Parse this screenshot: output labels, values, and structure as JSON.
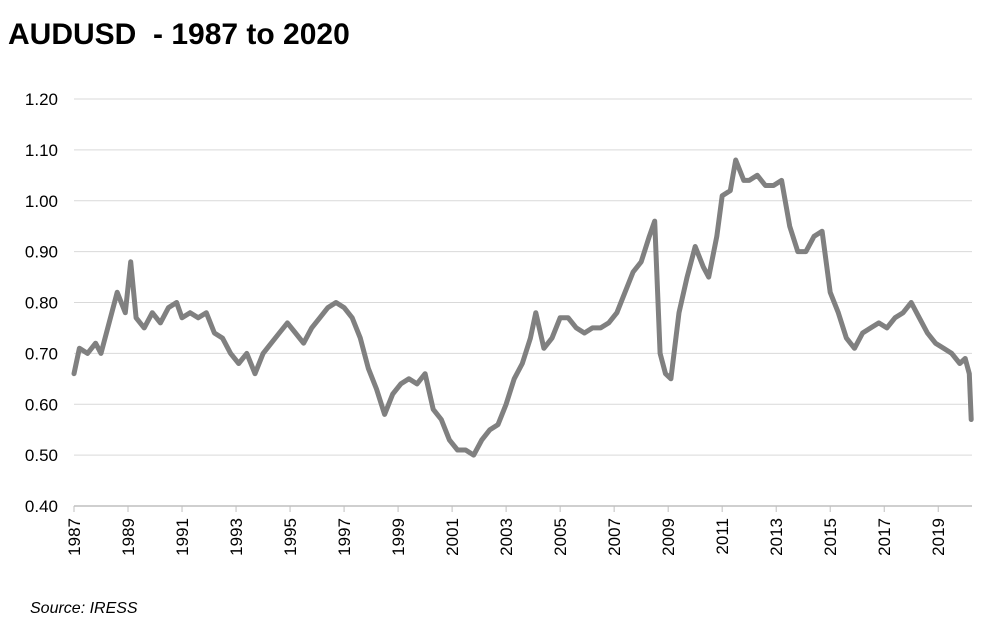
{
  "chart_data": {
    "type": "line",
    "title": "AUDUSD  - 1987 to 2020",
    "xlabel": "",
    "ylabel": "",
    "xlim": [
      1987.0,
      2020.25
    ],
    "ylim": [
      0.4,
      1.2
    ],
    "y_ticks": [
      "0.40",
      "0.50",
      "0.60",
      "0.70",
      "0.80",
      "0.90",
      "1.00",
      "1.10",
      "1.20"
    ],
    "x_ticks": [
      "1987",
      "1989",
      "1991",
      "1993",
      "1995",
      "1997",
      "1999",
      "2001",
      "2003",
      "2005",
      "2007",
      "2009",
      "2011",
      "2013",
      "2015",
      "2017",
      "2019"
    ],
    "grid": true,
    "legend": "none",
    "line_color": "#808080",
    "series": [
      {
        "x": [
          1987.0,
          1987.2,
          1987.5,
          1987.8,
          1988.0,
          1988.3,
          1988.6,
          1988.9,
          1989.1,
          1989.3,
          1989.6,
          1989.9,
          1990.2,
          1990.5,
          1990.8,
          1991.0,
          1991.3,
          1991.6,
          1991.9,
          1992.2,
          1992.5,
          1992.8,
          1993.1,
          1993.4,
          1993.7,
          1994.0,
          1994.3,
          1994.6,
          1994.9,
          1995.2,
          1995.5,
          1995.8,
          1996.1,
          1996.4,
          1996.7,
          1997.0,
          1997.3,
          1997.6,
          1997.9,
          1998.2,
          1998.5,
          1998.8,
          1999.1,
          1999.4,
          1999.7,
          2000.0,
          2000.3,
          2000.6,
          2000.9,
          2001.2,
          2001.5,
          2001.8,
          2002.1,
          2002.4,
          2002.7,
          2003.0,
          2003.3,
          2003.6,
          2003.9,
          2004.1,
          2004.4,
          2004.7,
          2005.0,
          2005.3,
          2005.6,
          2005.9,
          2006.2,
          2006.5,
          2006.8,
          2007.1,
          2007.4,
          2007.7,
          2008.0,
          2008.3,
          2008.5,
          2008.7,
          2008.9,
          2009.1,
          2009.4,
          2009.7,
          2010.0,
          2010.3,
          2010.5,
          2010.8,
          2011.0,
          2011.3,
          2011.5,
          2011.8,
          2012.0,
          2012.3,
          2012.6,
          2012.9,
          2013.2,
          2013.5,
          2013.8,
          2014.1,
          2014.4,
          2014.7,
          2015.0,
          2015.3,
          2015.6,
          2015.9,
          2016.2,
          2016.5,
          2016.8,
          2017.1,
          2017.4,
          2017.7,
          2018.0,
          2018.3,
          2018.6,
          2018.9,
          2019.2,
          2019.5,
          2019.8,
          2020.0,
          2020.15,
          2020.22
        ],
        "y": [
          0.66,
          0.71,
          0.7,
          0.72,
          0.7,
          0.76,
          0.82,
          0.78,
          0.88,
          0.77,
          0.75,
          0.78,
          0.76,
          0.79,
          0.8,
          0.77,
          0.78,
          0.77,
          0.78,
          0.74,
          0.73,
          0.7,
          0.68,
          0.7,
          0.66,
          0.7,
          0.72,
          0.74,
          0.76,
          0.74,
          0.72,
          0.75,
          0.77,
          0.79,
          0.8,
          0.79,
          0.77,
          0.73,
          0.67,
          0.63,
          0.58,
          0.62,
          0.64,
          0.65,
          0.64,
          0.66,
          0.59,
          0.57,
          0.53,
          0.51,
          0.51,
          0.5,
          0.53,
          0.55,
          0.56,
          0.6,
          0.65,
          0.68,
          0.73,
          0.78,
          0.71,
          0.73,
          0.77,
          0.77,
          0.75,
          0.74,
          0.75,
          0.75,
          0.76,
          0.78,
          0.82,
          0.86,
          0.88,
          0.93,
          0.96,
          0.7,
          0.66,
          0.65,
          0.78,
          0.85,
          0.91,
          0.87,
          0.85,
          0.93,
          1.01,
          1.02,
          1.08,
          1.04,
          1.04,
          1.05,
          1.03,
          1.03,
          1.04,
          0.95,
          0.9,
          0.9,
          0.93,
          0.94,
          0.82,
          0.78,
          0.73,
          0.71,
          0.74,
          0.75,
          0.76,
          0.75,
          0.77,
          0.78,
          0.8,
          0.77,
          0.74,
          0.72,
          0.71,
          0.7,
          0.68,
          0.69,
          0.66,
          0.57
        ]
      }
    ],
    "source": "Source:  IRESS"
  }
}
